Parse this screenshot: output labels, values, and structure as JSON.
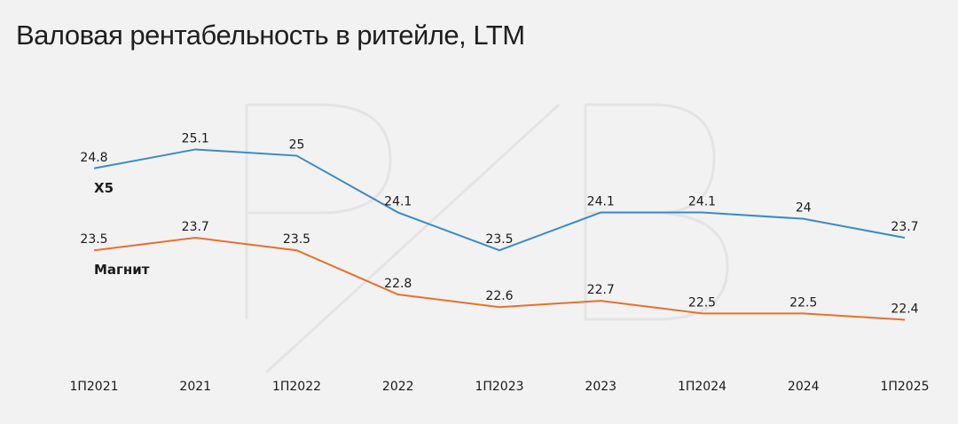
{
  "chart_data": {
    "type": "line",
    "title": "Валовая рентабельность в ритейле, LTM",
    "categories": [
      "1П2021",
      "2021",
      "1П2022",
      "2022",
      "1П2023",
      "2023",
      "1П2024",
      "2024",
      "1П2025"
    ],
    "series": [
      {
        "name": "X5",
        "color": "#3a8bc6",
        "values": [
          24.8,
          25.1,
          25,
          24.1,
          23.5,
          24.1,
          24.1,
          24,
          23.7
        ]
      },
      {
        "name": "Магнит",
        "color": "#eb6e2a",
        "values": [
          23.5,
          23.7,
          23.5,
          22.8,
          22.6,
          22.7,
          22.5,
          22.5,
          22.4
        ]
      }
    ],
    "value_labels": [
      [
        "24.8",
        "25.1",
        "25",
        "24.1",
        "23.5",
        "24.1",
        "24.1",
        "24",
        "23.7"
      ],
      [
        "23.5",
        "23.7",
        "23.5",
        "22.8",
        "22.6",
        "22.7",
        "22.5",
        "22.5",
        "22.4"
      ]
    ],
    "ylim": [
      21.9,
      25.5
    ],
    "grid": false,
    "xlabel": "",
    "ylabel": ""
  }
}
